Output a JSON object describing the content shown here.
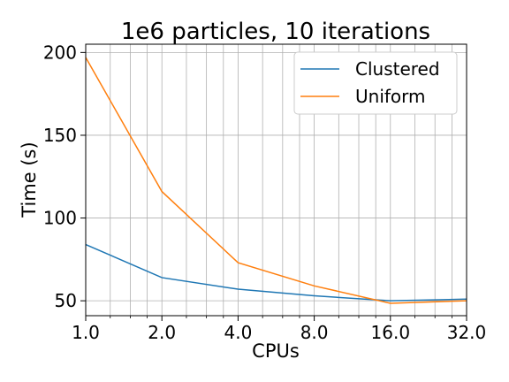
{
  "chart_data": {
    "type": "line",
    "title": "1e6 particles, 10 iterations",
    "xlabel": "CPUs",
    "ylabel": "Time (s)",
    "x_scale": "log2",
    "x": [
      1,
      2,
      4,
      8,
      16,
      32
    ],
    "xticks": [
      "1.0",
      "2.0",
      "4.0",
      "8.0",
      "16.0",
      "32.0"
    ],
    "yticks": [
      "50",
      "100",
      "150",
      "200"
    ],
    "xlim": [
      1,
      32
    ],
    "ylim": [
      41,
      205
    ],
    "grid": true,
    "legend_position": "top-right",
    "series": [
      {
        "name": "Clustered",
        "color": "#1f77b4",
        "values": [
          84,
          64,
          57,
          53,
          50,
          51
        ]
      },
      {
        "name": "Uniform",
        "color": "#ff7f0e",
        "values": [
          197,
          116,
          73,
          59,
          48.5,
          50
        ]
      }
    ]
  }
}
